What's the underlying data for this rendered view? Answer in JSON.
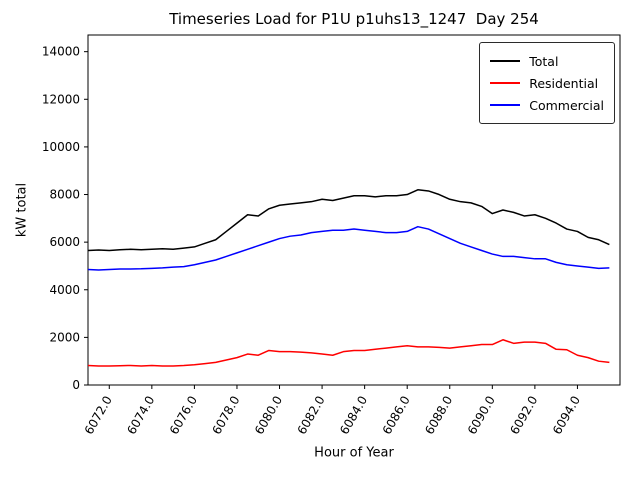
{
  "chart_data": {
    "type": "line",
    "title": "Timeseries Load for P1U p1uhs13_1247  Day 254",
    "xlabel": "Hour of Year",
    "ylabel": "kW total",
    "xlim": [
      6071,
      6096
    ],
    "ylim": [
      0,
      14700
    ],
    "grid": false,
    "legend_position": "upper right",
    "xticks": [
      6072,
      6074,
      6076,
      6078,
      6080,
      6082,
      6084,
      6086,
      6088,
      6090,
      6092,
      6094
    ],
    "xtick_labels": [
      "6072.0",
      "6074.0",
      "6076.0",
      "6078.0",
      "6080.0",
      "6082.0",
      "6084.0",
      "6086.0",
      "6088.0",
      "6090.0",
      "6092.0",
      "6094.0"
    ],
    "yticks": [
      0,
      2000,
      4000,
      6000,
      8000,
      10000,
      12000,
      14000
    ],
    "ytick_labels": [
      "0",
      "2000",
      "4000",
      "6000",
      "8000",
      "10000",
      "12000",
      "14000"
    ],
    "x": [
      6071.0,
      6071.5,
      6072.0,
      6072.5,
      6073.0,
      6073.5,
      6074.0,
      6074.5,
      6075.0,
      6075.5,
      6076.0,
      6076.5,
      6077.0,
      6077.5,
      6078.0,
      6078.5,
      6079.0,
      6079.5,
      6080.0,
      6080.5,
      6081.0,
      6081.5,
      6082.0,
      6082.5,
      6083.0,
      6083.5,
      6084.0,
      6084.5,
      6085.0,
      6085.5,
      6086.0,
      6086.5,
      6087.0,
      6087.5,
      6088.0,
      6088.5,
      6089.0,
      6089.5,
      6090.0,
      6090.5,
      6091.0,
      6091.5,
      6092.0,
      6092.5,
      6093.0,
      6093.5,
      6094.0,
      6094.5,
      6095.0,
      6095.5
    ],
    "series": [
      {
        "name": "Total",
        "color": "#000000",
        "values": [
          5650,
          5670,
          5650,
          5680,
          5700,
          5680,
          5700,
          5720,
          5700,
          5750,
          5800,
          5950,
          6100,
          6450,
          6800,
          7150,
          7100,
          7400,
          7550,
          7600,
          7650,
          7700,
          7800,
          7750,
          7850,
          7950,
          7950,
          7900,
          7950,
          7950,
          8000,
          8200,
          8150,
          8000,
          7800,
          7700,
          7650,
          7500,
          7200,
          7350,
          7250,
          7100,
          7150,
          7000,
          6800,
          6550,
          6450,
          6200,
          6100,
          5900
        ]
      },
      {
        "name": "Residential",
        "color": "#ff0000",
        "values": [
          820,
          800,
          800,
          810,
          820,
          800,
          820,
          800,
          800,
          820,
          850,
          900,
          950,
          1050,
          1150,
          1300,
          1250,
          1450,
          1400,
          1400,
          1380,
          1350,
          1300,
          1250,
          1400,
          1450,
          1450,
          1500,
          1550,
          1600,
          1650,
          1600,
          1600,
          1580,
          1550,
          1600,
          1650,
          1700,
          1700,
          1900,
          1750,
          1800,
          1800,
          1750,
          1500,
          1480,
          1250,
          1150,
          1000,
          950
        ]
      },
      {
        "name": "Commercial",
        "color": "#0000ff",
        "values": [
          4850,
          4830,
          4850,
          4870,
          4870,
          4880,
          4900,
          4920,
          4950,
          4970,
          5050,
          5150,
          5250,
          5400,
          5550,
          5700,
          5850,
          6000,
          6150,
          6250,
          6300,
          6400,
          6450,
          6500,
          6500,
          6550,
          6500,
          6450,
          6400,
          6400,
          6450,
          6650,
          6550,
          6350,
          6150,
          5950,
          5800,
          5650,
          5500,
          5400,
          5400,
          5350,
          5300,
          5300,
          5150,
          5050,
          5000,
          4950,
          4900,
          4920
        ]
      }
    ]
  }
}
